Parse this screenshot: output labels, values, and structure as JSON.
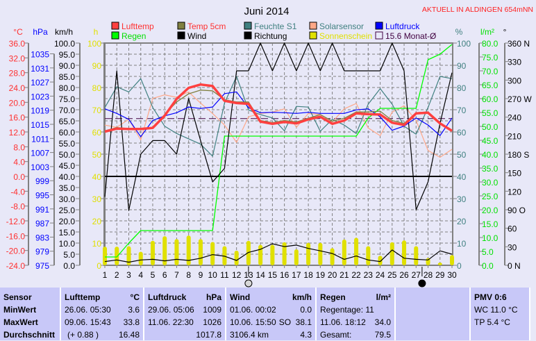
{
  "header": {
    "title": "Juni 2014",
    "location": "AKTUELL IN ALDINGEN 654mNN"
  },
  "legend": [
    {
      "label": "Lufttemp",
      "color": "#ff4040",
      "text_color": "#ff3030"
    },
    {
      "label": "Temp 5cm",
      "color": "#808040",
      "text_color": "#ff3030"
    },
    {
      "label": "Feuchte S1",
      "color": "#408080",
      "text_color": "#408080"
    },
    {
      "label": "Solarsensor",
      "color": "#ffa888",
      "text_color": "#408080"
    },
    {
      "label": "Luftdruck",
      "color": "#0000ff",
      "text_color": "#0000ff"
    },
    {
      "label": "Regen",
      "color": "#00ff00",
      "text_color": "#00e000"
    },
    {
      "label": "Wind",
      "color": "#000000",
      "text_color": "#000000"
    },
    {
      "label": "Richtung",
      "color": "#000000",
      "text_color": "#000000"
    },
    {
      "label": "Sonnenschein",
      "color": "#e0e000",
      "text_color": "#e0e000"
    },
    {
      "label": "15.6 Monat-Ø",
      "color": "#400040",
      "text_color": "#400040"
    }
  ],
  "axes": {
    "celsius": {
      "unit": "°C",
      "labels": [
        "36.0",
        "32.0",
        "28.0",
        "24.0",
        "20.0",
        "16.0",
        "12.0",
        "8.0",
        "4.0",
        "0.0",
        "-4.0",
        "-8.0",
        "-12.0",
        "-16.0",
        "-20.0",
        "-24.0"
      ],
      "color": "#ff3030"
    },
    "hpa": {
      "unit": "hPa",
      "labels": [
        "1035",
        "1031",
        "1027",
        "1023",
        "1019",
        "1015",
        "1011",
        "1007",
        "1003",
        "999",
        "995",
        "991",
        "987",
        "983",
        "979",
        "975"
      ],
      "color": "#0000ff"
    },
    "kmh": {
      "unit": "km/h",
      "labels": [
        "100.0",
        "95.0",
        "90.0",
        "85.0",
        "80.0",
        "75.0",
        "70.0",
        "65.0",
        "60.0",
        "55.0",
        "50.0",
        "45.0",
        "40.0",
        "35.0",
        "30.0",
        "25.0",
        "20.0",
        "15.0",
        "10.0",
        "5.0",
        "0.0"
      ],
      "color": "#000000"
    },
    "hours": {
      "unit": "h",
      "labels": [
        "100",
        "90",
        "80",
        "70",
        "60",
        "50",
        "40",
        "30",
        "20",
        "10",
        "0"
      ],
      "color": "#e0e000"
    },
    "percent": {
      "unit": "%",
      "labels": [
        "100",
        "90",
        "80",
        "70",
        "60",
        "50",
        "40",
        "30",
        "20",
        "10",
        "0"
      ],
      "color": "#408080"
    },
    "rain": {
      "unit": "l/m²",
      "labels": [
        "80.0",
        "75.0",
        "70.0",
        "65.0",
        "60.0",
        "55.0",
        "50.0",
        "45.0",
        "40.0",
        "35.0",
        "30.0",
        "25.0",
        "20.0",
        "15.0",
        "10.0",
        "5.0",
        "0.0"
      ],
      "color": "#00e000"
    },
    "direction": {
      "unit": "°",
      "labels": [
        "360 N",
        "330",
        "300",
        "270 W",
        "240",
        "210",
        "180 S",
        "150",
        "120",
        "90 O",
        "60",
        "30",
        "0 N"
      ],
      "color": "#000000"
    }
  },
  "chart_data": {
    "type": "line",
    "title": "Juni 2014",
    "x": [
      1,
      2,
      3,
      4,
      5,
      6,
      7,
      8,
      9,
      10,
      11,
      12,
      13,
      14,
      15,
      16,
      17,
      18,
      19,
      20,
      21,
      22,
      23,
      24,
      25,
      26,
      27,
      28,
      29,
      30
    ],
    "xlabel": "",
    "grid": true,
    "legend": "top",
    "monthly_mean_temp": 15.6,
    "moon_phases": [
      {
        "day": 13,
        "phase": "full-moon"
      },
      {
        "day": 27,
        "phase": "new-moon"
      }
    ],
    "series": [
      {
        "name": "Lufttemp",
        "unit": "°C",
        "values": [
          12.1,
          12.9,
          12.8,
          12.8,
          13.1,
          16.4,
          20.9,
          23.9,
          24.8,
          24.4,
          20.4,
          19.8,
          19.6,
          14.8,
          14.2,
          14.7,
          14.3,
          15.4,
          16.1,
          14.2,
          15.1,
          17.0,
          16.8,
          16.7,
          14.5,
          13.9,
          17.0,
          17.2,
          14.3,
          12.3
        ]
      },
      {
        "name": "Temp 5cm",
        "unit": "°C",
        "values": [
          12.3,
          13.2,
          12.9,
          12.6,
          13.1,
          16.7,
          20.1,
          22.3,
          23.3,
          23.1,
          20.7,
          20.1,
          20.1,
          15.1,
          14.5,
          15.1,
          14.7,
          15.7,
          16.7,
          14.9,
          15.7,
          17.4,
          17.4,
          17.6,
          15.1,
          14.3,
          17.2,
          17.4,
          14.5,
          12.4
        ]
      },
      {
        "name": "Feuchte S1",
        "unit": "%",
        "values": [
          71.0,
          80.3,
          78.0,
          84.0,
          71.0,
          62.6,
          59.3,
          56.9,
          54.5,
          49.1,
          73.0,
          85.0,
          69.9,
          67.8,
          66.3,
          60.5,
          71.5,
          71.2,
          60.3,
          65.7,
          63.1,
          59.3,
          72.5,
          79.5,
          72.5,
          62.6,
          59.0,
          71.0,
          85.0,
          84.0
        ]
      },
      {
        "name": "Solarsensor",
        "unit": "%",
        "values": [
          63.1,
          62.1,
          65.7,
          56.4,
          75.1,
          76.7,
          75.6,
          78.0,
          73.0,
          68.3,
          63.1,
          55.3,
          66.8,
          68.3,
          68.9,
          70.4,
          62.1,
          68.3,
          67.8,
          64.5,
          70.4,
          72.8,
          61.8,
          58.3,
          68.9,
          71.8,
          65.2,
          51.7,
          48.6,
          52.2
        ]
      },
      {
        "name": "Luftdruck",
        "unit": "hPa",
        "values": [
          1019.4,
          1018.1,
          1016.4,
          1011.5,
          1016.1,
          1017.4,
          1018.3,
          1019.9,
          1019.5,
          1019.9,
          1023.7,
          1024.2,
          1019.7,
          1018.3,
          1018.4,
          1018.3,
          1018.1,
          1018.4,
          1018.1,
          1018.1,
          1018.1,
          1019.1,
          1019.4,
          1017.1,
          1013.3,
          1014.5,
          1016.8,
          1014.8,
          1011.8,
          1016.8
        ]
      },
      {
        "name": "Regen",
        "unit": "l/m²",
        "values": [
          3.0,
          3.0,
          8.0,
          12.5,
          12.5,
          12.5,
          12.5,
          12.5,
          12.5,
          12.5,
          46.5,
          46.5,
          46.5,
          46.5,
          46.5,
          46.5,
          46.5,
          46.5,
          46.5,
          46.5,
          46.5,
          46.5,
          53.0,
          56.5,
          56.5,
          56.5,
          56.5,
          74.0,
          76.0,
          79.5
        ]
      },
      {
        "name": "Wind",
        "unit": "km/h",
        "values": [
          1.7,
          2.4,
          1.4,
          2.4,
          2.7,
          2.0,
          2.7,
          2.2,
          3.2,
          4.8,
          4.1,
          2.2,
          5.8,
          7.2,
          9.7,
          8.4,
          9.1,
          7.6,
          6.5,
          5.3,
          2.7,
          4.2,
          2.4,
          1.7,
          6.9,
          3.2,
          2.7,
          2.4,
          6.5,
          5.0
        ]
      },
      {
        "name": "Richtung",
        "unit": "°",
        "values": [
          111,
          315,
          89,
          180,
          202,
          202,
          180,
          270,
          202,
          135,
          157,
          315,
          315,
          360,
          315,
          360,
          315,
          360,
          315,
          360,
          315,
          315,
          315,
          315,
          360,
          315,
          90,
          135,
          230,
          312
        ]
      },
      {
        "name": "Sonnenschein",
        "unit": "h",
        "type": "bar",
        "values": [
          8.4,
          8.4,
          8.6,
          6.1,
          11.0,
          13.1,
          11.8,
          13.4,
          11.8,
          10.5,
          8.6,
          6.6,
          11.0,
          9.2,
          9.2,
          10.4,
          7.2,
          10.1,
          10.1,
          7.7,
          11.6,
          12.4,
          8.6,
          4.3,
          10.4,
          11.2,
          8.6,
          3.3,
          1.2,
          4.6
        ]
      }
    ]
  },
  "table": {
    "sensor": {
      "header": "Sensor",
      "rows": [
        "MinWert",
        "MaxWert",
        "Durchschnitt"
      ]
    },
    "lufttemp": {
      "header": "Lufttemp",
      "unit": "°C",
      "min_time": "26.06.  05:30",
      "min": "3.6",
      "max_time": "09.06.  15:43",
      "max": "33.8",
      "avg_note": "(+ 0.88 )",
      "avg": "16.48"
    },
    "luftdruck": {
      "header": "Luftdruck",
      "unit": "hPa",
      "min_time": "29.06.  05:06",
      "min": "1009",
      "max_time": "11.06.  22:30",
      "max": "1026",
      "avg": "1017.8"
    },
    "wind": {
      "header": "Wind",
      "unit": "km/h",
      "min_time": "01.06.  00:02",
      "min": "0.0",
      "max_time": "10.06.  15:50",
      "max_dir": "SO",
      "max": "38.1",
      "distance": "3106.4 km",
      "avg": "4.3"
    },
    "regen": {
      "header": "Regen",
      "unit": "l/m²",
      "rain_days": "Regentage: 11",
      "max_time": "11.06.  18:12",
      "max": "34.0",
      "total_label": "Gesamt:",
      "total": "79.5"
    },
    "pmv": {
      "header": "PMV 0:6",
      "wc": "WC 11.0 °C",
      "tp": "TP 5.4 °C"
    }
  }
}
